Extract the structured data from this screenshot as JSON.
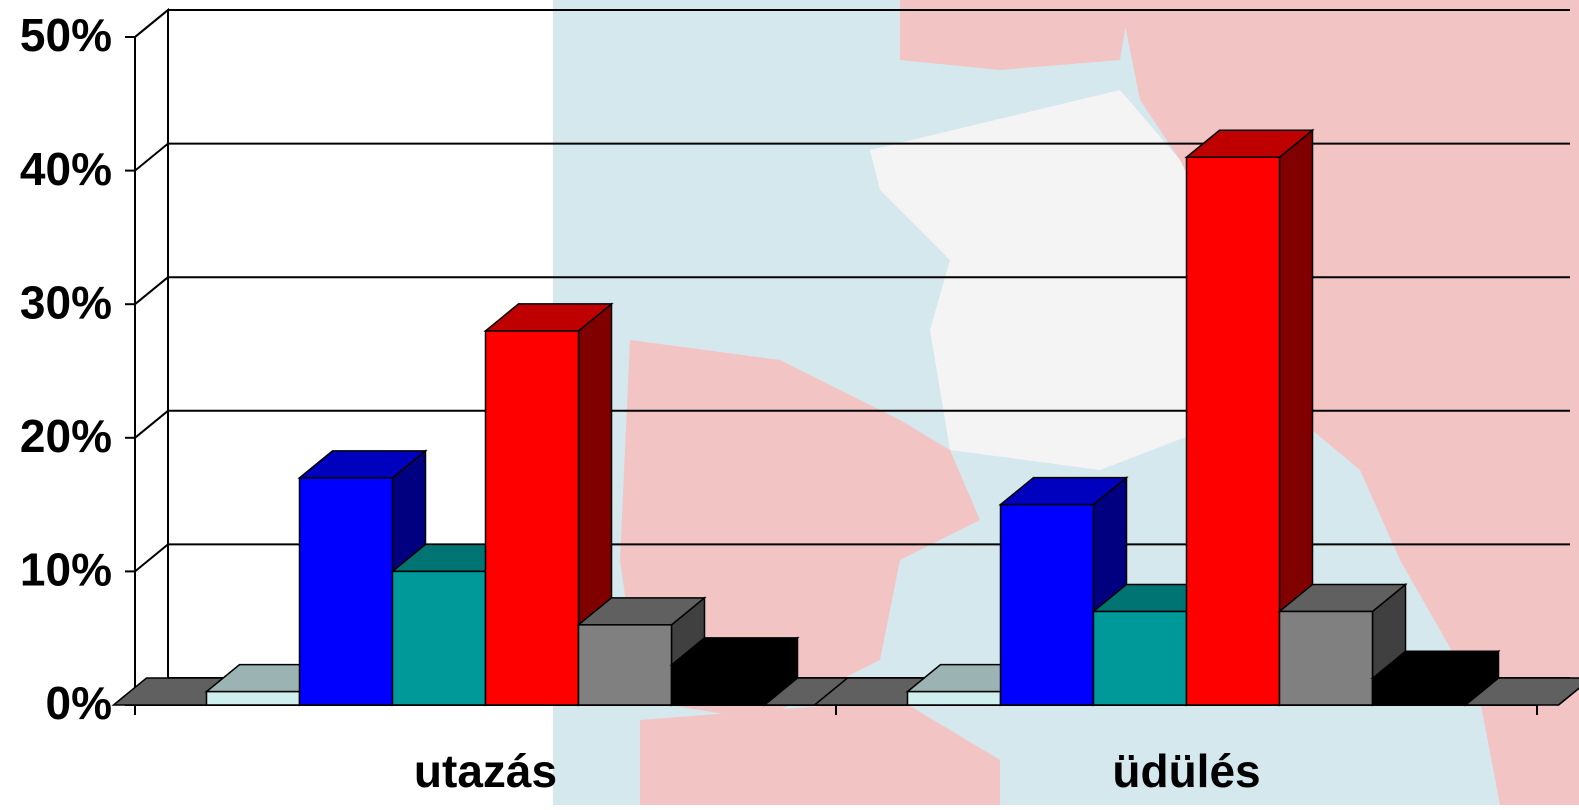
{
  "chart_data": {
    "type": "bar3d",
    "categories": [
      "utazás",
      "üdülés"
    ],
    "series": [
      {
        "color": "#808080",
        "values": [
          0,
          0
        ]
      },
      {
        "color": "#cfeeee",
        "values": [
          1,
          1
        ]
      },
      {
        "color": "#0000ff",
        "values": [
          17,
          15
        ]
      },
      {
        "color": "#009999",
        "values": [
          10,
          7
        ]
      },
      {
        "color": "#ff0000",
        "values": [
          28,
          41
        ]
      },
      {
        "color": "#808080",
        "values": [
          6,
          7
        ]
      },
      {
        "color": "#000000",
        "values": [
          3,
          2
        ]
      },
      {
        "color": "#808080",
        "values": [
          0,
          0
        ]
      }
    ],
    "ylim": [
      0,
      50
    ],
    "yticks": [
      {
        "value": 0,
        "label": "0%"
      },
      {
        "value": 10,
        "label": "10%"
      },
      {
        "value": 20,
        "label": "20%"
      },
      {
        "value": 30,
        "label": "30%"
      },
      {
        "value": 40,
        "label": "40%"
      },
      {
        "value": 50,
        "label": "50%"
      }
    ],
    "grid": true
  }
}
